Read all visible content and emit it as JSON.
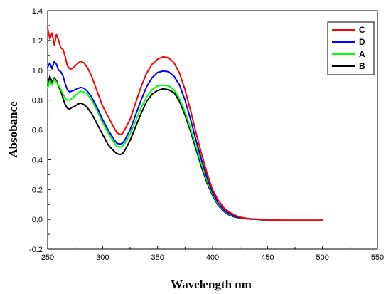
{
  "chart_data": {
    "type": "line",
    "title": "",
    "xlabel": "Wavelength nm",
    "ylabel": "Absobance",
    "xlim": [
      250,
      550
    ],
    "ylim": [
      -0.2,
      1.4
    ],
    "xticks": [
      250,
      300,
      350,
      400,
      450,
      500,
      550
    ],
    "yticks": [
      -0.2,
      0.0,
      0.2,
      0.4,
      0.6,
      0.8,
      1.0,
      1.2,
      1.4
    ],
    "xtick_labels": [
      "250",
      "300",
      "350",
      "400",
      "450",
      "500",
      "550"
    ],
    "ytick_labels": [
      "-0.2",
      "0.0",
      "0.2",
      "0.4",
      "0.6",
      "0.8",
      "1.0",
      "1.2",
      "1.4"
    ],
    "grid": false,
    "legend_position": "top-right",
    "series": [
      {
        "name": "C",
        "color": "#ff0000",
        "x": [
          250,
          252,
          254,
          256,
          258,
          260,
          262,
          264,
          266,
          268,
          270,
          272,
          275,
          278,
          280,
          283,
          286,
          290,
          295,
          300,
          305,
          310,
          313,
          316,
          318,
          320,
          325,
          330,
          335,
          340,
          345,
          350,
          355,
          360,
          365,
          370,
          375,
          380,
          385,
          390,
          395,
          400,
          405,
          410,
          415,
          420,
          425,
          430,
          435,
          440,
          445,
          450,
          460,
          470,
          480,
          490,
          500
        ],
        "values": [
          1.28,
          1.21,
          1.25,
          1.17,
          1.24,
          1.2,
          1.15,
          1.14,
          1.09,
          1.03,
          1.01,
          1.01,
          1.03,
          1.05,
          1.06,
          1.05,
          1.02,
          0.96,
          0.86,
          0.76,
          0.69,
          0.62,
          0.58,
          0.57,
          0.575,
          0.6,
          0.67,
          0.78,
          0.89,
          0.98,
          1.04,
          1.075,
          1.09,
          1.085,
          1.05,
          0.98,
          0.87,
          0.73,
          0.58,
          0.44,
          0.31,
          0.2,
          0.13,
          0.08,
          0.05,
          0.03,
          0.015,
          0.008,
          0.004,
          0.002,
          0.0,
          -0.005,
          -0.005,
          -0.006,
          -0.006,
          -0.006,
          -0.006
        ]
      },
      {
        "name": "D",
        "color": "#0000ff",
        "x": [
          250,
          252,
          254,
          256,
          258,
          260,
          262,
          264,
          266,
          268,
          270,
          272,
          275,
          278,
          280,
          283,
          286,
          290,
          295,
          300,
          305,
          310,
          313,
          316,
          318,
          320,
          325,
          330,
          335,
          340,
          345,
          350,
          355,
          360,
          365,
          370,
          375,
          380,
          385,
          390,
          395,
          400,
          405,
          410,
          415,
          420,
          425,
          430,
          435,
          440,
          445,
          450,
          460,
          470,
          480,
          490,
          500
        ],
        "values": [
          1.02,
          1.05,
          1.01,
          1.06,
          1.04,
          1.0,
          0.99,
          0.96,
          0.91,
          0.87,
          0.855,
          0.86,
          0.87,
          0.88,
          0.885,
          0.88,
          0.86,
          0.82,
          0.75,
          0.67,
          0.6,
          0.54,
          0.51,
          0.505,
          0.51,
          0.53,
          0.6,
          0.7,
          0.8,
          0.89,
          0.95,
          0.985,
          0.995,
          0.99,
          0.96,
          0.9,
          0.8,
          0.67,
          0.53,
          0.4,
          0.28,
          0.18,
          0.11,
          0.065,
          0.04,
          0.022,
          0.012,
          0.006,
          0.003,
          0.001,
          -0.002,
          -0.005,
          -0.006,
          -0.006,
          -0.006,
          -0.006,
          -0.006
        ]
      },
      {
        "name": "A",
        "color": "#00ff00",
        "x": [
          250,
          252,
          254,
          256,
          258,
          260,
          262,
          264,
          266,
          268,
          270,
          272,
          275,
          278,
          280,
          283,
          286,
          290,
          295,
          300,
          305,
          310,
          313,
          316,
          318,
          320,
          325,
          330,
          335,
          340,
          345,
          350,
          355,
          360,
          365,
          370,
          375,
          380,
          385,
          390,
          395,
          400,
          405,
          410,
          415,
          420,
          425,
          430,
          435,
          440,
          445,
          450,
          460,
          470,
          480,
          490,
          500
        ],
        "values": [
          0.88,
          0.93,
          0.9,
          0.94,
          0.92,
          0.9,
          0.87,
          0.84,
          0.81,
          0.8,
          0.8,
          0.81,
          0.83,
          0.85,
          0.86,
          0.855,
          0.84,
          0.8,
          0.73,
          0.65,
          0.58,
          0.52,
          0.49,
          0.485,
          0.49,
          0.51,
          0.57,
          0.66,
          0.75,
          0.82,
          0.87,
          0.895,
          0.9,
          0.895,
          0.87,
          0.81,
          0.72,
          0.61,
          0.49,
          0.37,
          0.26,
          0.17,
          0.1,
          0.06,
          0.035,
          0.02,
          0.01,
          0.005,
          0.002,
          0.0,
          -0.003,
          -0.005,
          -0.006,
          -0.006,
          -0.006,
          -0.006,
          -0.006
        ]
      },
      {
        "name": "B",
        "color": "#000000",
        "x": [
          250,
          252,
          254,
          256,
          258,
          260,
          262,
          264,
          266,
          268,
          270,
          272,
          275,
          278,
          280,
          283,
          286,
          290,
          295,
          300,
          305,
          310,
          313,
          316,
          318,
          320,
          325,
          330,
          335,
          340,
          345,
          350,
          355,
          360,
          365,
          370,
          375,
          380,
          385,
          390,
          395,
          400,
          405,
          410,
          415,
          420,
          425,
          430,
          435,
          440,
          445,
          450,
          460,
          470,
          480,
          490,
          500
        ],
        "values": [
          0.9,
          0.96,
          0.92,
          0.95,
          0.93,
          0.89,
          0.86,
          0.81,
          0.77,
          0.745,
          0.74,
          0.75,
          0.76,
          0.775,
          0.78,
          0.77,
          0.75,
          0.71,
          0.64,
          0.57,
          0.5,
          0.46,
          0.44,
          0.435,
          0.44,
          0.46,
          0.53,
          0.62,
          0.71,
          0.79,
          0.84,
          0.865,
          0.875,
          0.87,
          0.85,
          0.79,
          0.7,
          0.59,
          0.47,
          0.35,
          0.245,
          0.16,
          0.095,
          0.055,
          0.03,
          0.016,
          0.008,
          0.004,
          0.002,
          0.0,
          -0.003,
          -0.005,
          -0.006,
          -0.006,
          -0.006,
          -0.006,
          -0.006
        ]
      }
    ]
  }
}
